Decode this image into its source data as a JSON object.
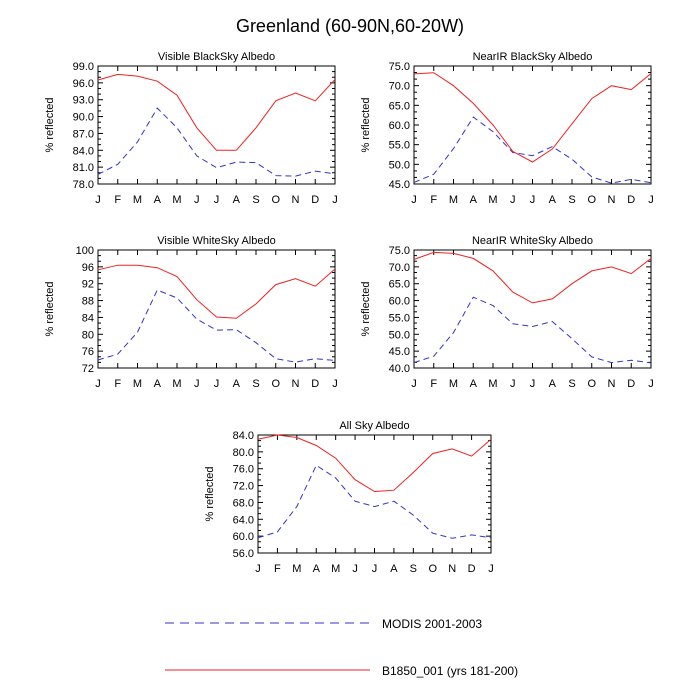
{
  "figure_title": "Greenland (60-90N,60-20W)",
  "legend": {
    "items": [
      {
        "label": "MODIS 2001-2003",
        "color": "#3333cc",
        "dash": true
      },
      {
        "label": "B1850_001 (yrs 181-200)",
        "color": "#ee2222",
        "dash": false
      }
    ]
  },
  "chart_data": [
    {
      "type": "line",
      "title": "Visible BlackSky Albedo",
      "xlabel": "",
      "ylabel": "% reflected",
      "categories": [
        "J",
        "F",
        "M",
        "A",
        "M",
        "J",
        "J",
        "A",
        "S",
        "O",
        "N",
        "D",
        "J"
      ],
      "ylim": [
        78.0,
        99.0
      ],
      "yticks": [
        "78.0",
        "81.0",
        "84.0",
        "87.0",
        "90.0",
        "93.0",
        "96.0",
        "99.0"
      ],
      "series": [
        {
          "name": "MODIS 2001-2003",
          "values": [
            79.7,
            81.5,
            85.5,
            91.5,
            88.0,
            83.0,
            80.9,
            81.9,
            81.8,
            79.5,
            79.4,
            80.3,
            79.8
          ]
        },
        {
          "name": "B1850_001 (yrs 181-200)",
          "values": [
            96.5,
            97.5,
            97.2,
            96.3,
            93.8,
            88.0,
            84.0,
            84.0,
            88.0,
            92.8,
            94.2,
            92.8,
            96.6
          ]
        }
      ]
    },
    {
      "type": "line",
      "title": "NearIR BlackSky Albedo",
      "xlabel": "",
      "ylabel": "% reflected",
      "categories": [
        "J",
        "F",
        "M",
        "A",
        "M",
        "J",
        "J",
        "A",
        "S",
        "O",
        "N",
        "D",
        "J"
      ],
      "ylim": [
        45.0,
        75.0
      ],
      "yticks": [
        "45.0",
        "50.0",
        "55.0",
        "60.0",
        "65.0",
        "70.0",
        "75.0"
      ],
      "series": [
        {
          "name": "MODIS 2001-2003",
          "values": [
            45.4,
            47.5,
            54.0,
            62.0,
            58.3,
            53.0,
            52.2,
            54.5,
            51.3,
            46.8,
            45.2,
            46.2,
            45.3
          ]
        },
        {
          "name": "B1850_001 (yrs 181-200)",
          "values": [
            73.0,
            73.3,
            70.0,
            65.5,
            60.0,
            53.3,
            50.6,
            53.9,
            60.3,
            66.7,
            70.0,
            69.0,
            73.1
          ]
        }
      ]
    },
    {
      "type": "line",
      "title": "Visible WhiteSky Albedo",
      "xlabel": "",
      "ylabel": "% reflected",
      "categories": [
        "J",
        "F",
        "M",
        "A",
        "M",
        "J",
        "J",
        "A",
        "S",
        "O",
        "N",
        "D",
        "J"
      ],
      "ylim": [
        72,
        100
      ],
      "yticks": [
        "72",
        "76",
        "80",
        "84",
        "88",
        "92",
        "96",
        "100"
      ],
      "series": [
        {
          "name": "MODIS 2001-2003",
          "values": [
            73.9,
            75.3,
            80.5,
            90.5,
            88.6,
            83.6,
            81.0,
            81.1,
            78.0,
            74.2,
            73.4,
            74.2,
            73.8
          ]
        },
        {
          "name": "B1850_001 (yrs 181-200)",
          "values": [
            95.3,
            96.4,
            96.4,
            95.8,
            93.7,
            88.2,
            84.1,
            83.8,
            87.2,
            91.8,
            93.2,
            91.4,
            95.5
          ]
        }
      ]
    },
    {
      "type": "line",
      "title": "NearIR WhiteSky Albedo",
      "xlabel": "",
      "ylabel": "% reflected",
      "categories": [
        "J",
        "F",
        "M",
        "A",
        "M",
        "J",
        "J",
        "A",
        "S",
        "O",
        "N",
        "D",
        "J"
      ],
      "ylim": [
        40.0,
        75.0
      ],
      "yticks": [
        "40.0",
        "45.0",
        "50.0",
        "55.0",
        "60.0",
        "65.0",
        "70.0",
        "75.0"
      ],
      "series": [
        {
          "name": "MODIS 2001-2003",
          "values": [
            41.6,
            43.5,
            50.5,
            61.0,
            58.5,
            53.1,
            52.3,
            53.8,
            48.7,
            43.3,
            41.6,
            42.3,
            41.5
          ]
        },
        {
          "name": "B1850_001 (yrs 181-200)",
          "values": [
            72.2,
            74.3,
            74.0,
            72.5,
            68.8,
            62.5,
            59.3,
            60.5,
            65.0,
            68.8,
            70.0,
            68.0,
            72.5
          ]
        }
      ]
    },
    {
      "type": "line",
      "title": "All Sky Albedo",
      "xlabel": "",
      "ylabel": "% reflected",
      "categories": [
        "J",
        "F",
        "M",
        "A",
        "M",
        "J",
        "J",
        "A",
        "S",
        "O",
        "N",
        "D",
        "J"
      ],
      "ylim": [
        56.0,
        84.0
      ],
      "yticks": [
        "56.0",
        "60.0",
        "64.0",
        "68.0",
        "72.0",
        "76.0",
        "80.0",
        "84.0"
      ],
      "series": [
        {
          "name": "MODIS 2001-2003",
          "values": [
            59.6,
            61.0,
            67.0,
            76.8,
            73.8,
            68.3,
            67.0,
            68.3,
            65.0,
            60.7,
            59.5,
            60.3,
            59.6
          ]
        },
        {
          "name": "B1850_001 (yrs 181-200)",
          "values": [
            83.0,
            84.0,
            83.4,
            81.5,
            78.5,
            73.4,
            70.6,
            70.9,
            75.1,
            79.6,
            80.7,
            79.0,
            83.0
          ]
        }
      ]
    }
  ]
}
